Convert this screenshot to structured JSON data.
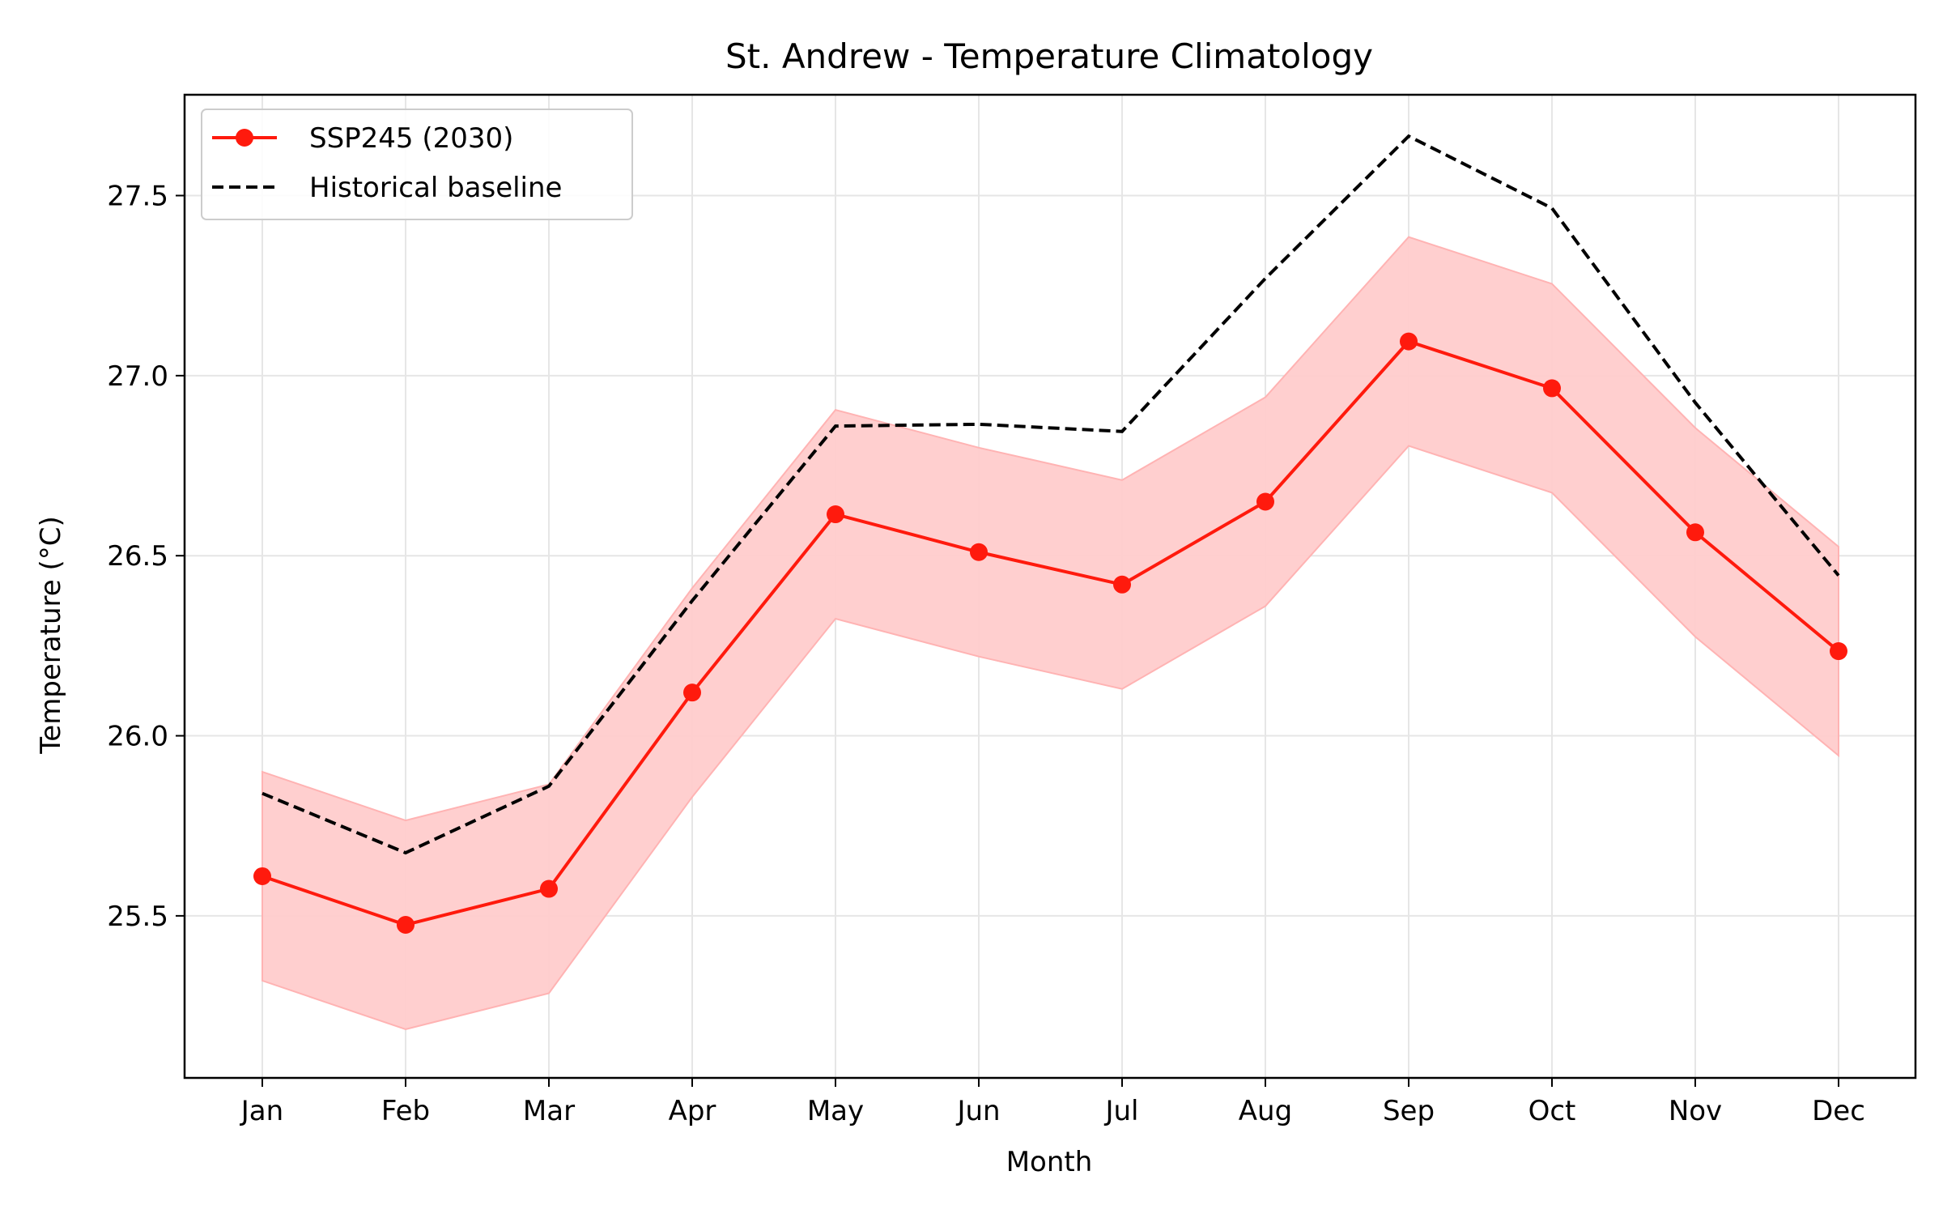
{
  "chart_data": {
    "type": "line",
    "title": "St. Andrew - Temperature Climatology",
    "xlabel": "Month",
    "ylabel": "Temperature (°C)",
    "categories": [
      "Jan",
      "Feb",
      "Mar",
      "Apr",
      "May",
      "Jun",
      "Jul",
      "Aug",
      "Sep",
      "Oct",
      "Nov",
      "Dec"
    ],
    "ylim": [
      25.05,
      27.78
    ],
    "yticks": [
      25.5,
      26.0,
      26.5,
      27.0,
      27.5
    ],
    "grid": true,
    "legend_position": "upper-left",
    "series": [
      {
        "name": "SSP245 (2030)",
        "style": "solid-with-markers",
        "color": "#ff1a0d",
        "values": [
          25.61,
          25.475,
          25.575,
          26.12,
          26.615,
          26.51,
          26.42,
          26.65,
          27.095,
          26.965,
          26.565,
          26.235
        ],
        "band_lower": [
          25.32,
          25.185,
          25.285,
          25.83,
          26.325,
          26.22,
          26.13,
          26.36,
          26.805,
          26.675,
          26.275,
          25.945
        ],
        "band_upper": [
          25.9,
          25.765,
          25.865,
          26.41,
          26.905,
          26.8,
          26.71,
          26.94,
          27.385,
          27.255,
          26.855,
          26.525
        ],
        "band_color": "#ffcccc"
      },
      {
        "name": "Historical baseline",
        "style": "dashed",
        "color": "#000000",
        "values": [
          25.84,
          25.675,
          25.86,
          26.375,
          26.86,
          26.865,
          26.845,
          27.27,
          27.665,
          27.465,
          26.925,
          26.445
        ]
      }
    ]
  }
}
